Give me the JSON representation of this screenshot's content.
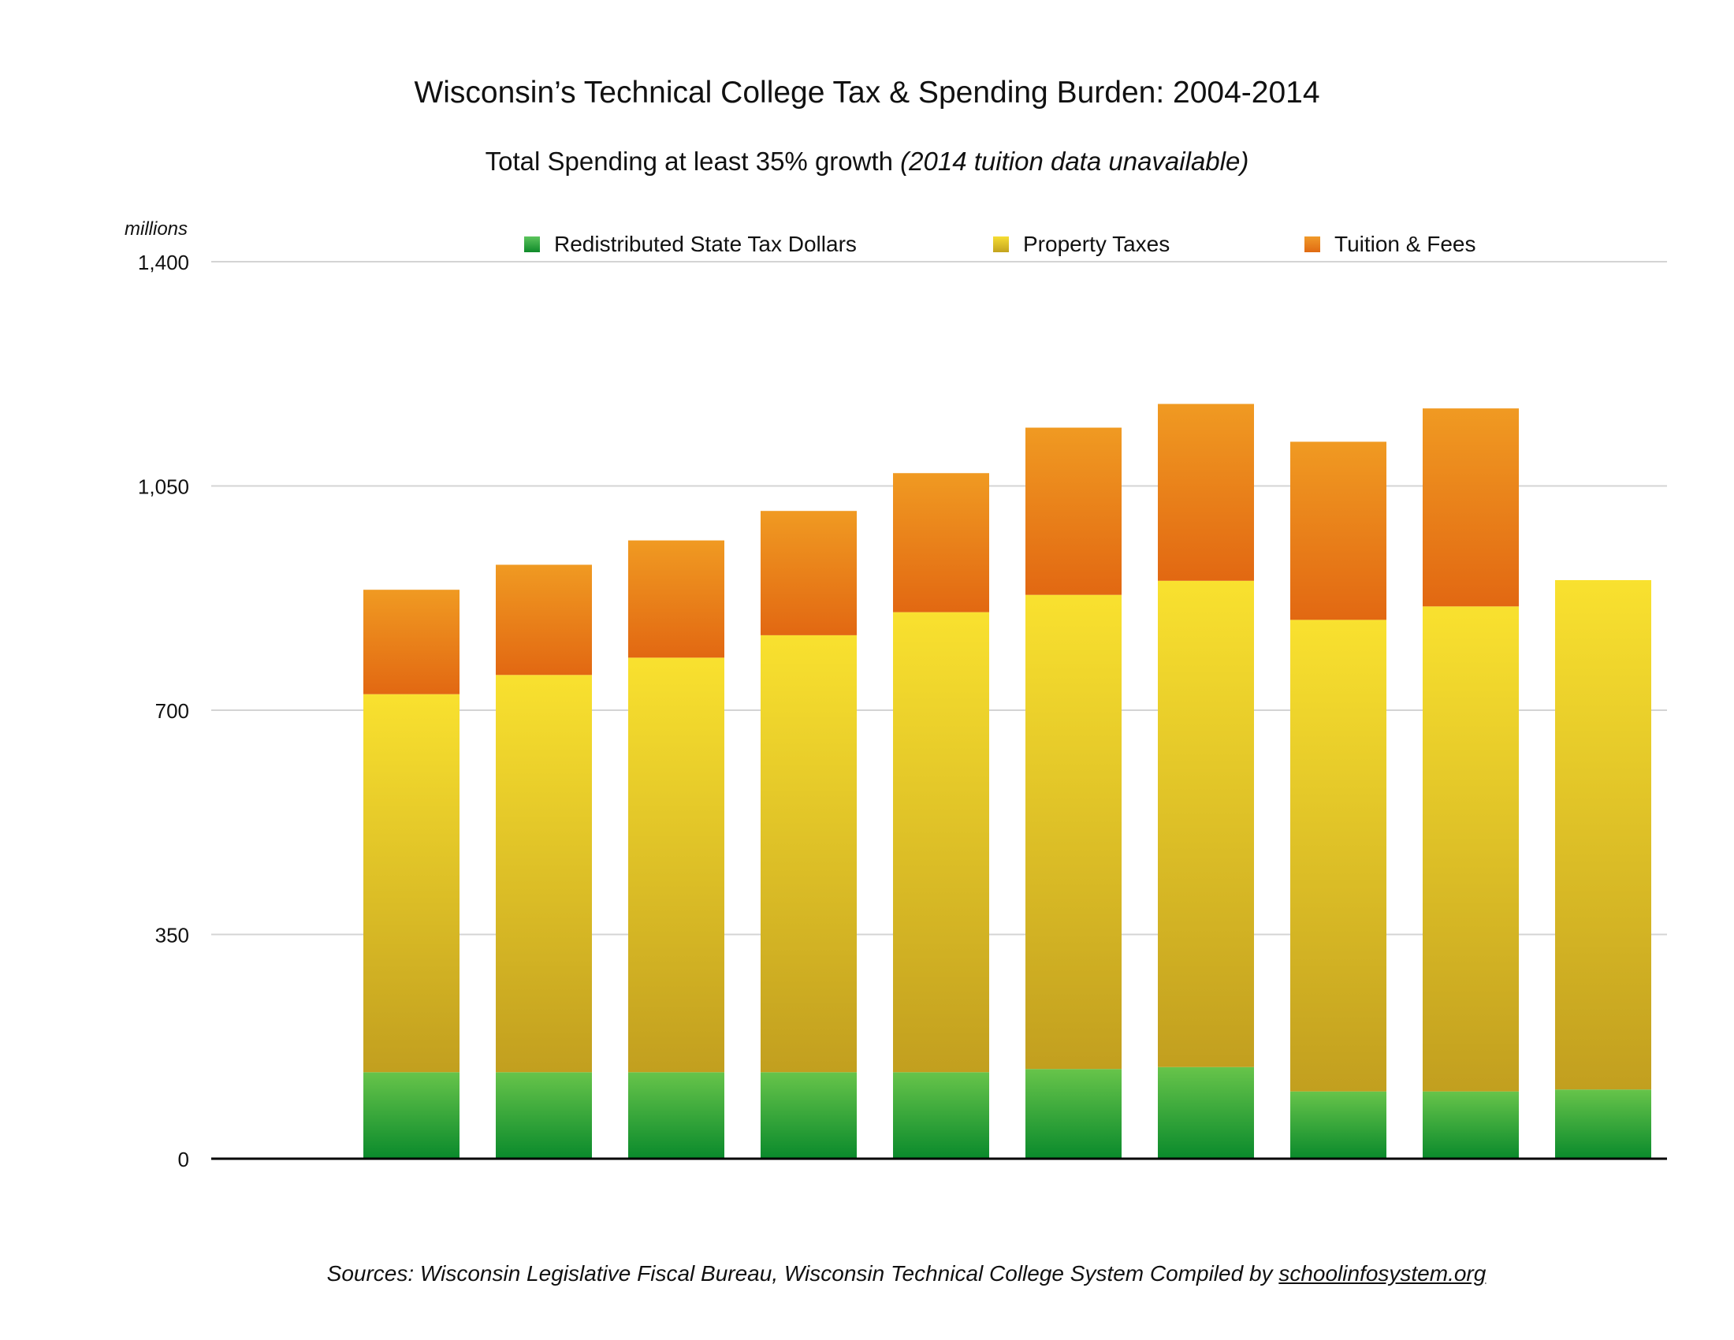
{
  "title": "Wisconsin’s Technical College Tax & Spending Burden: 2004-2014",
  "subtitle_main": "Total Spending  at least 35% growth",
  "subtitle_note": "(2014 tuition data unavailable)",
  "units_label": "millions",
  "sources_text": "Sources: Wisconsin Legislative Fiscal Bureau, Wisconsin Technical College System  Compiled by",
  "sources_link": "schoolinfosystem.org",
  "colors": {
    "state": "#3aa63a",
    "property": "#e0c22a",
    "tuition": "#e8801e",
    "grid": "#d4d4d4",
    "axis": "#000000"
  },
  "chart_data": {
    "type": "bar",
    "stacked": true,
    "title": "Wisconsin’s Technical College Tax & Spending Burden: 2004-2014",
    "ylabel": "millions",
    "ylim": [
      0,
      1400
    ],
    "yticks": [
      0,
      350,
      700,
      1050,
      1400
    ],
    "ytick_labels": [
      "0",
      "350",
      "700",
      "1,050",
      "1,400"
    ],
    "grid": true,
    "legend_position": "top",
    "categories": [
      "",
      "",
      "",
      "",
      "",
      "",
      "",
      "",
      "",
      ""
    ],
    "series": [
      {
        "name": "Redistributed State Tax Dollars",
        "values": [
          135,
          135,
          135,
          135,
          135,
          140,
          143,
          105,
          105,
          108
        ]
      },
      {
        "name": "Property Taxes",
        "values": [
          590,
          620,
          647,
          682,
          718,
          740,
          759,
          736,
          757,
          795
        ]
      },
      {
        "name": "Tuition & Fees",
        "values": [
          163,
          172,
          183,
          194,
          217,
          261,
          276,
          278,
          309,
          0
        ]
      }
    ]
  }
}
